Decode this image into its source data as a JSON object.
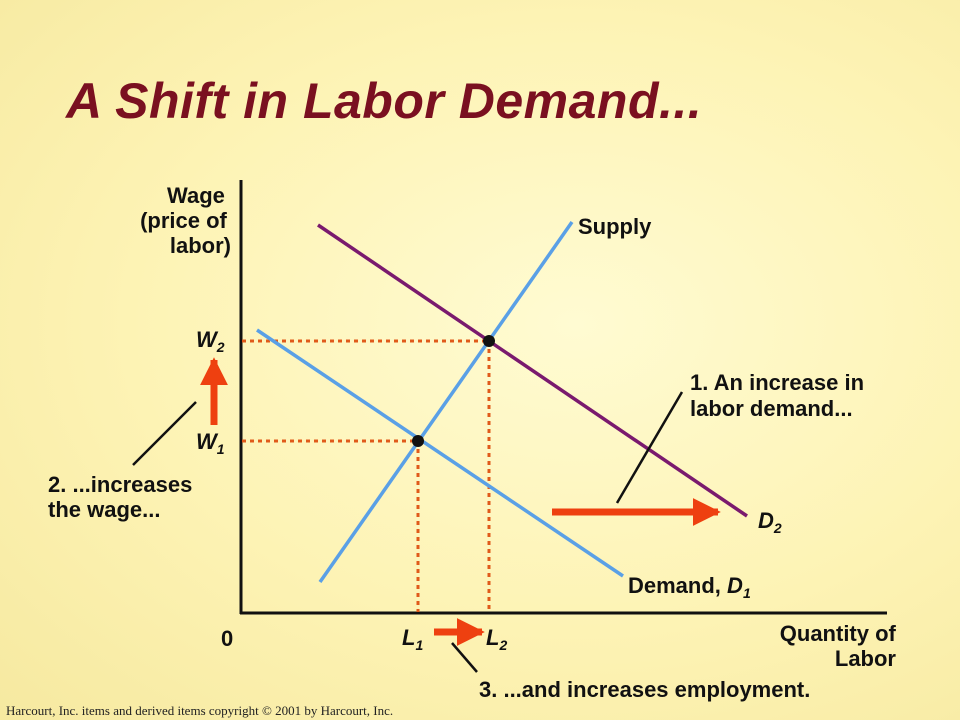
{
  "slide": {
    "title": "A Shift in Labor Demand...",
    "footer": "Harcourt, Inc. items and derived items copyright © 2001 by Harcourt, Inc."
  },
  "axes": {
    "y_label_lines": [
      "Wage",
      "(price of",
      "labor)"
    ],
    "x_label_lines": [
      "Quantity of",
      "Labor"
    ],
    "origin": "0"
  },
  "curves": {
    "supply": "Supply",
    "demand1_prefix": "Demand,",
    "demand1_letter": "D",
    "demand1_sub": "1",
    "demand2_letter": "D",
    "demand2_sub": "2"
  },
  "ticks": {
    "w1": {
      "letter": "W",
      "sub": "1"
    },
    "w2": {
      "letter": "W",
      "sub": "2"
    },
    "l1": {
      "letter": "L",
      "sub": "1"
    },
    "l2": {
      "letter": "L",
      "sub": "2"
    }
  },
  "annotations": {
    "step1_lines": [
      "1. An increase in",
      "labor demand..."
    ],
    "step2_lines": [
      "2. ...increases",
      "the wage..."
    ],
    "step3": "3. ...and increases employment."
  },
  "colors": {
    "title": "#7a1020",
    "supply": "#5aa0e6",
    "demand1": "#5aa0e6",
    "demand2": "#7a1a6e",
    "dotted": "#e05a1a",
    "arrow": "#ee4010",
    "axis": "#111111"
  }
}
